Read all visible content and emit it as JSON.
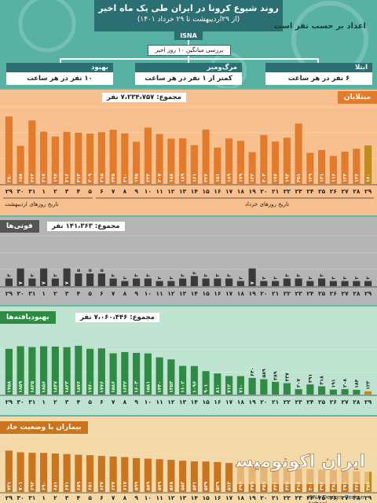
{
  "header": {
    "title": "روند شیوع کرونا در ایران طی یک ماه اخیر",
    "subtitle": "(از ۲۹اردیبهشت تا ۲۹ خرداد ۱۴۰۱)",
    "isna": "ISNA",
    "side_title": "اعداد بر حسب نفر است",
    "avg_label": "بررسی میانگین ۱۰ روز اخیر"
  },
  "kpis": [
    {
      "title": "ابتلا",
      "value": "۶ نفر در هر ساعت",
      "color": "#2c6f72"
    },
    {
      "title": "مرگ‌ومیر",
      "value": "کمتر از ۱ نفر در هر ساعت",
      "color": "#2c6f72"
    },
    {
      "title": "بهبود",
      "value": "۱۰ نفر در هر ساعت",
      "color": "#2c6f72"
    }
  ],
  "colors": {
    "infected_bg": "#f9c08f",
    "infected_bar": "#e27b2c",
    "infected_head": "#e27b2c",
    "deaths_bg": "#b5b5b5",
    "deaths_bar": "#3a3a3a",
    "deaths_head": "#555555",
    "recovered_bg": "#bfe3d1",
    "recovered_bar": "#2f8a43",
    "recovered_head": "#2f8a43",
    "critical_bg": "#f3d8a8",
    "critical_bar": "#c9741f",
    "critical_head": "#c9741f"
  },
  "footer": {
    "credit": "ISNA  Design: Pedram Aghaei",
    "logo_text": "ایران اکونومیست"
  },
  "chart_data": [
    {
      "type": "bar",
      "title": "مبتلایان",
      "total": "مجموع: ۷،۲۳۴،۷۵۷ نفر",
      "categories": [
        "29",
        "30",
        "31",
        "1",
        "2",
        "3",
        "4",
        "5",
        "6",
        "7",
        "8",
        "9",
        "10",
        "11",
        "12",
        "13",
        "14",
        "15",
        "16",
        "17",
        "18",
        "19",
        "20",
        "21",
        "22",
        "23",
        "24",
        "25",
        "26",
        "27",
        "28",
        "29"
      ],
      "values": [
        280,
        158,
        264,
        217,
        197,
        216,
        213,
        209,
        215,
        225,
        210,
        175,
        234,
        207,
        188,
        189,
        161,
        226,
        151,
        189,
        179,
        132,
        203,
        176,
        192,
        251,
        129,
        141,
        116,
        134,
        146,
        160
      ],
      "labels": [
        "۲۸۰",
        "۱۵۸",
        "۲۶۴",
        "۲۱۷",
        "۱۹۷",
        "۲۱۶",
        "۲۱۳",
        "۲۰۹",
        "۲۱۵",
        "۲۲۵",
        "۲۱۰",
        "۱۷۵",
        "۲۳۴",
        "۲۰۷",
        "۱۸۸",
        "۱۸۹",
        "۱۶۱",
        "۲۲۶",
        "۱۵۱",
        "۱۸۹",
        "۱۷۹",
        "۱۳۲",
        "۲۰۳",
        "۱۷۶",
        "۱۹۲",
        "۲۵۱",
        "۱۲۹",
        "۱۴۱",
        "۱۱۶",
        "۱۳۴",
        "۱۴۶",
        "۱۶۰"
      ],
      "xlabel_left": "تاریخ روزهای اردیبهشت",
      "xlabel_right": "تاریخ روزهای خرداد",
      "ylim": [
        0,
        320
      ]
    },
    {
      "type": "bar",
      "title": "فوتی‌ها",
      "total": "مجموع: ۱۴۱،۳۶۳ نفر",
      "categories": [
        "29",
        "30",
        "31",
        "1",
        "2",
        "3",
        "4",
        "5",
        "6",
        "7",
        "8",
        "9",
        "10",
        "11",
        "12",
        "13",
        "14",
        "15",
        "16",
        "17",
        "18",
        "19",
        "20",
        "21",
        "22",
        "23",
        "24",
        "25",
        "26",
        "27",
        "28",
        "29"
      ],
      "values": [
        3,
        7,
        3,
        7,
        3,
        7,
        5,
        5,
        5,
        3,
        2,
        3,
        3,
        2,
        2,
        3,
        4,
        3,
        3,
        3,
        2,
        7,
        2,
        2,
        3,
        3,
        2,
        3,
        2,
        2,
        2,
        2
      ],
      "labels": [
        "۳",
        "۷",
        "۳",
        "۷",
        "۳",
        "۷",
        "۵",
        "۵",
        "۵",
        "۳",
        "۲",
        "۳",
        "۳",
        "۲",
        "۲",
        "۳",
        "۴",
        "۳",
        "۳",
        "۳",
        "۲",
        "۷",
        "۲",
        "۲",
        "۳",
        "۳",
        "۲",
        "۳",
        "۲",
        "۲",
        "۲",
        "۲"
      ],
      "ylim": [
        0,
        20
      ]
    },
    {
      "type": "bar",
      "title": "بهبودیافته‌ها",
      "total": "مجموع: ۷،۰۶۰،۴۴۶ نفر",
      "categories": [
        "29",
        "30",
        "31",
        "1",
        "2",
        "3",
        "4",
        "5",
        "6",
        "7",
        "8",
        "9",
        "10",
        "11",
        "12",
        "13",
        "14",
        "15",
        "16",
        "17",
        "18",
        "19",
        "20",
        "21",
        "22",
        "23",
        "24",
        "25",
        "26",
        "27",
        "28",
        "29"
      ],
      "values": [
        1758,
        1859,
        1825,
        1856,
        1847,
        1823,
        1876,
        1760,
        1776,
        1586,
        1632,
        1603,
        1581,
        1430,
        1353,
        1102,
        1096,
        901,
        810,
        712,
        710,
        640,
        589,
        489,
        437,
        207,
        391,
        318,
        191,
        208,
        184,
        123
      ],
      "labels": [
        "۱۷۵۸",
        "۱۸۵۹",
        "۱۸۲۵",
        "۱۸۵۶",
        "۱۸۴۷",
        "۱۸۲۳",
        "۱۸۷۶",
        "۱۷۶۰",
        "۱۷۷۶",
        "۱۵۸۶",
        "۱۶۳۲",
        "۱۶۰۳",
        "۱۵۸۱",
        "۱۴۳۰",
        "۱۳۵۳",
        "۱۱۰۲",
        "۱۰۹۶",
        "۹۰۱",
        "۸۱۰",
        "۷۱۲",
        "۷۱۰",
        "۶۴۰",
        "۵۸۹",
        "۴۸۹",
        "۴۳۷",
        "۲۰۷",
        "۳۹۱",
        "۳۱۸",
        "۱۹۱",
        "۲۰۸",
        "۱۸۴",
        "۱۲۳"
      ],
      "ylim": [
        0,
        2600
      ]
    },
    {
      "type": "bar",
      "title": "بیماران با وضعیت حاد",
      "total": "",
      "categories": [
        "29",
        "30",
        "31",
        "1",
        "2",
        "3",
        "4",
        "5",
        "6",
        "7",
        "8",
        "9",
        "10",
        "11",
        "12",
        "13",
        "14",
        "15",
        "16",
        "17",
        "18",
        "19",
        "20",
        "21",
        "22",
        "23",
        "24",
        "25",
        "26",
        "27",
        "28",
        "29"
      ],
      "values": [
        731,
        701,
        693,
        690,
        681,
        671,
        659,
        651,
        637,
        627,
        617,
        599,
        589,
        579,
        568,
        553,
        541,
        539,
        529,
        512,
        499,
        479,
        459,
        441,
        425,
        415,
        406,
        397,
        388,
        371,
        366,
        357
      ],
      "labels": [
        "۷۳۱",
        "۷۰۱",
        "۶۹۳",
        "۶۹۰",
        "۶۸۱",
        "۶۷۱",
        "۶۵۹",
        "۶۵۱",
        "۶۳۷",
        "۶۲۷",
        "۶۱۷",
        "۵۹۹",
        "۵۸۹",
        "۵۷۹",
        "۵۶۸",
        "۵۵۳",
        "۵۴۱",
        "۵۳۹",
        "۵۲۹",
        "۵۱۲",
        "۴۹۹",
        "۴۷۹",
        "۴۵۹",
        "۴۴۱",
        "۴۲۵",
        "۴۱۵",
        "۴۰۶",
        "۳۹۷",
        "۳۸۸",
        "۳۷۱",
        "۳۶۶",
        "۳۵۷"
      ],
      "ylim": [
        0,
        1000
      ]
    }
  ]
}
